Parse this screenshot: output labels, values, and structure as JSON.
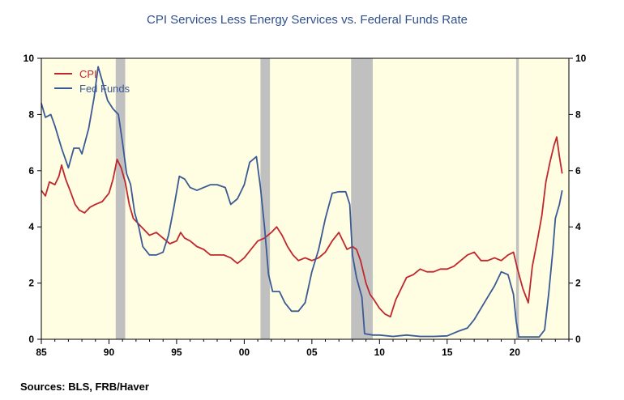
{
  "chart_data": {
    "type": "line",
    "title": "CPI Services Less Energy Services vs. Federal Funds Rate",
    "source": "Sources:  BLS, FRB/Haver",
    "xlim": [
      1985.0,
      2024.0
    ],
    "ylim": [
      0,
      10
    ],
    "x_tick_labels": [
      {
        "year": 1985,
        "label": "85"
      },
      {
        "year": 1990,
        "label": "90"
      },
      {
        "year": 1995,
        "label": "95"
      },
      {
        "year": 2000,
        "label": "00"
      },
      {
        "year": 2005,
        "label": "05"
      },
      {
        "year": 2010,
        "label": "10"
      },
      {
        "year": 2015,
        "label": "15"
      },
      {
        "year": 2020,
        "label": "20"
      }
    ],
    "y_ticks": [
      0,
      2,
      4,
      6,
      8,
      10
    ],
    "legend_position": "top-left",
    "recessions": [
      [
        1990.5,
        1991.2
      ],
      [
        2001.2,
        2001.9
      ],
      [
        2007.9,
        2009.5
      ],
      [
        2020.1,
        2020.3
      ]
    ],
    "background_color": "#fffde2",
    "recession_color": "#c0c0c0",
    "series": [
      {
        "name": "CPI",
        "color": "#c0272d",
        "points": [
          [
            1985.0,
            5.3
          ],
          [
            1985.3,
            5.1
          ],
          [
            1985.6,
            5.6
          ],
          [
            1986.0,
            5.5
          ],
          [
            1986.3,
            5.8
          ],
          [
            1986.5,
            6.2
          ],
          [
            1986.8,
            5.7
          ],
          [
            1987.2,
            5.2
          ],
          [
            1987.5,
            4.8
          ],
          [
            1987.8,
            4.6
          ],
          [
            1988.2,
            4.5
          ],
          [
            1988.6,
            4.7
          ],
          [
            1989.0,
            4.8
          ],
          [
            1989.5,
            4.9
          ],
          [
            1990.0,
            5.2
          ],
          [
            1990.3,
            5.7
          ],
          [
            1990.6,
            6.4
          ],
          [
            1990.9,
            6.1
          ],
          [
            1991.2,
            5.6
          ],
          [
            1991.5,
            4.8
          ],
          [
            1991.8,
            4.3
          ],
          [
            1992.2,
            4.1
          ],
          [
            1992.6,
            3.9
          ],
          [
            1993.0,
            3.7
          ],
          [
            1993.5,
            3.8
          ],
          [
            1994.0,
            3.6
          ],
          [
            1994.5,
            3.4
          ],
          [
            1995.0,
            3.5
          ],
          [
            1995.3,
            3.8
          ],
          [
            1995.6,
            3.6
          ],
          [
            1996.0,
            3.5
          ],
          [
            1996.5,
            3.3
          ],
          [
            1997.0,
            3.2
          ],
          [
            1997.5,
            3.0
          ],
          [
            1998.0,
            3.0
          ],
          [
            1998.5,
            3.0
          ],
          [
            1999.0,
            2.9
          ],
          [
            1999.5,
            2.7
          ],
          [
            2000.0,
            2.9
          ],
          [
            2000.5,
            3.2
          ],
          [
            2001.0,
            3.5
          ],
          [
            2001.5,
            3.6
          ],
          [
            2002.0,
            3.8
          ],
          [
            2002.4,
            4.0
          ],
          [
            2002.8,
            3.7
          ],
          [
            2003.2,
            3.3
          ],
          [
            2003.6,
            3.0
          ],
          [
            2004.0,
            2.8
          ],
          [
            2004.5,
            2.9
          ],
          [
            2005.0,
            2.8
          ],
          [
            2005.5,
            2.9
          ],
          [
            2006.0,
            3.1
          ],
          [
            2006.5,
            3.5
          ],
          [
            2007.0,
            3.8
          ],
          [
            2007.3,
            3.5
          ],
          [
            2007.6,
            3.2
          ],
          [
            2008.0,
            3.3
          ],
          [
            2008.3,
            3.2
          ],
          [
            2008.6,
            2.8
          ],
          [
            2009.0,
            2.0
          ],
          [
            2009.3,
            1.6
          ],
          [
            2009.6,
            1.4
          ],
          [
            2010.0,
            1.1
          ],
          [
            2010.4,
            0.9
          ],
          [
            2010.8,
            0.8
          ],
          [
            2011.2,
            1.4
          ],
          [
            2011.6,
            1.8
          ],
          [
            2012.0,
            2.2
          ],
          [
            2012.5,
            2.3
          ],
          [
            2013.0,
            2.5
          ],
          [
            2013.5,
            2.4
          ],
          [
            2014.0,
            2.4
          ],
          [
            2014.5,
            2.5
          ],
          [
            2015.0,
            2.5
          ],
          [
            2015.5,
            2.6
          ],
          [
            2016.0,
            2.8
          ],
          [
            2016.5,
            3.0
          ],
          [
            2017.0,
            3.1
          ],
          [
            2017.5,
            2.8
          ],
          [
            2018.0,
            2.8
          ],
          [
            2018.5,
            2.9
          ],
          [
            2019.0,
            2.8
          ],
          [
            2019.5,
            3.0
          ],
          [
            2019.9,
            3.1
          ],
          [
            2020.2,
            2.5
          ],
          [
            2020.6,
            1.8
          ],
          [
            2021.0,
            1.3
          ],
          [
            2021.3,
            2.6
          ],
          [
            2021.7,
            3.6
          ],
          [
            2022.0,
            4.4
          ],
          [
            2022.3,
            5.6
          ],
          [
            2022.6,
            6.3
          ],
          [
            2022.9,
            6.9
          ],
          [
            2023.1,
            7.2
          ],
          [
            2023.3,
            6.5
          ],
          [
            2023.5,
            5.9
          ]
        ]
      },
      {
        "name": "Fed Funds",
        "color": "#3a5a95",
        "points": [
          [
            1985.0,
            8.4
          ],
          [
            1985.3,
            7.9
          ],
          [
            1985.7,
            8.0
          ],
          [
            1986.0,
            7.6
          ],
          [
            1986.5,
            6.8
          ],
          [
            1987.0,
            6.1
          ],
          [
            1987.4,
            6.8
          ],
          [
            1987.8,
            6.8
          ],
          [
            1988.0,
            6.6
          ],
          [
            1988.5,
            7.5
          ],
          [
            1988.9,
            8.6
          ],
          [
            1989.2,
            9.7
          ],
          [
            1989.5,
            9.2
          ],
          [
            1989.9,
            8.5
          ],
          [
            1990.3,
            8.2
          ],
          [
            1990.7,
            8.0
          ],
          [
            1991.0,
            7.0
          ],
          [
            1991.3,
            5.9
          ],
          [
            1991.6,
            5.5
          ],
          [
            1991.9,
            4.5
          ],
          [
            1992.2,
            4.0
          ],
          [
            1992.5,
            3.3
          ],
          [
            1993.0,
            3.0
          ],
          [
            1993.5,
            3.0
          ],
          [
            1994.0,
            3.1
          ],
          [
            1994.4,
            3.7
          ],
          [
            1994.8,
            4.7
          ],
          [
            1995.2,
            5.8
          ],
          [
            1995.6,
            5.7
          ],
          [
            1996.0,
            5.4
          ],
          [
            1996.5,
            5.3
          ],
          [
            1997.0,
            5.4
          ],
          [
            1997.5,
            5.5
          ],
          [
            1998.0,
            5.5
          ],
          [
            1998.6,
            5.4
          ],
          [
            1999.0,
            4.8
          ],
          [
            1999.5,
            5.0
          ],
          [
            2000.0,
            5.5
          ],
          [
            2000.4,
            6.3
          ],
          [
            2000.9,
            6.5
          ],
          [
            2001.2,
            5.4
          ],
          [
            2001.5,
            4.0
          ],
          [
            2001.8,
            2.3
          ],
          [
            2002.1,
            1.7
          ],
          [
            2002.6,
            1.7
          ],
          [
            2003.0,
            1.3
          ],
          [
            2003.5,
            1.0
          ],
          [
            2004.0,
            1.0
          ],
          [
            2004.5,
            1.3
          ],
          [
            2005.0,
            2.4
          ],
          [
            2005.5,
            3.2
          ],
          [
            2006.0,
            4.3
          ],
          [
            2006.5,
            5.2
          ],
          [
            2007.0,
            5.25
          ],
          [
            2007.5,
            5.25
          ],
          [
            2007.8,
            4.8
          ],
          [
            2008.0,
            3.0
          ],
          [
            2008.3,
            2.2
          ],
          [
            2008.7,
            1.5
          ],
          [
            2008.9,
            0.2
          ],
          [
            2009.5,
            0.15
          ],
          [
            2010.0,
            0.15
          ],
          [
            2011.0,
            0.1
          ],
          [
            2012.0,
            0.15
          ],
          [
            2013.0,
            0.1
          ],
          [
            2014.0,
            0.1
          ],
          [
            2015.0,
            0.12
          ],
          [
            2015.9,
            0.3
          ],
          [
            2016.5,
            0.4
          ],
          [
            2017.0,
            0.7
          ],
          [
            2017.5,
            1.1
          ],
          [
            2018.0,
            1.5
          ],
          [
            2018.5,
            1.9
          ],
          [
            2019.0,
            2.4
          ],
          [
            2019.5,
            2.3
          ],
          [
            2019.9,
            1.6
          ],
          [
            2020.1,
            0.65
          ],
          [
            2020.3,
            0.08
          ],
          [
            2021.0,
            0.08
          ],
          [
            2021.8,
            0.08
          ],
          [
            2022.2,
            0.33
          ],
          [
            2022.5,
            1.6
          ],
          [
            2022.8,
            3.1
          ],
          [
            2023.0,
            4.3
          ],
          [
            2023.3,
            4.8
          ],
          [
            2023.5,
            5.3
          ]
        ]
      }
    ]
  }
}
